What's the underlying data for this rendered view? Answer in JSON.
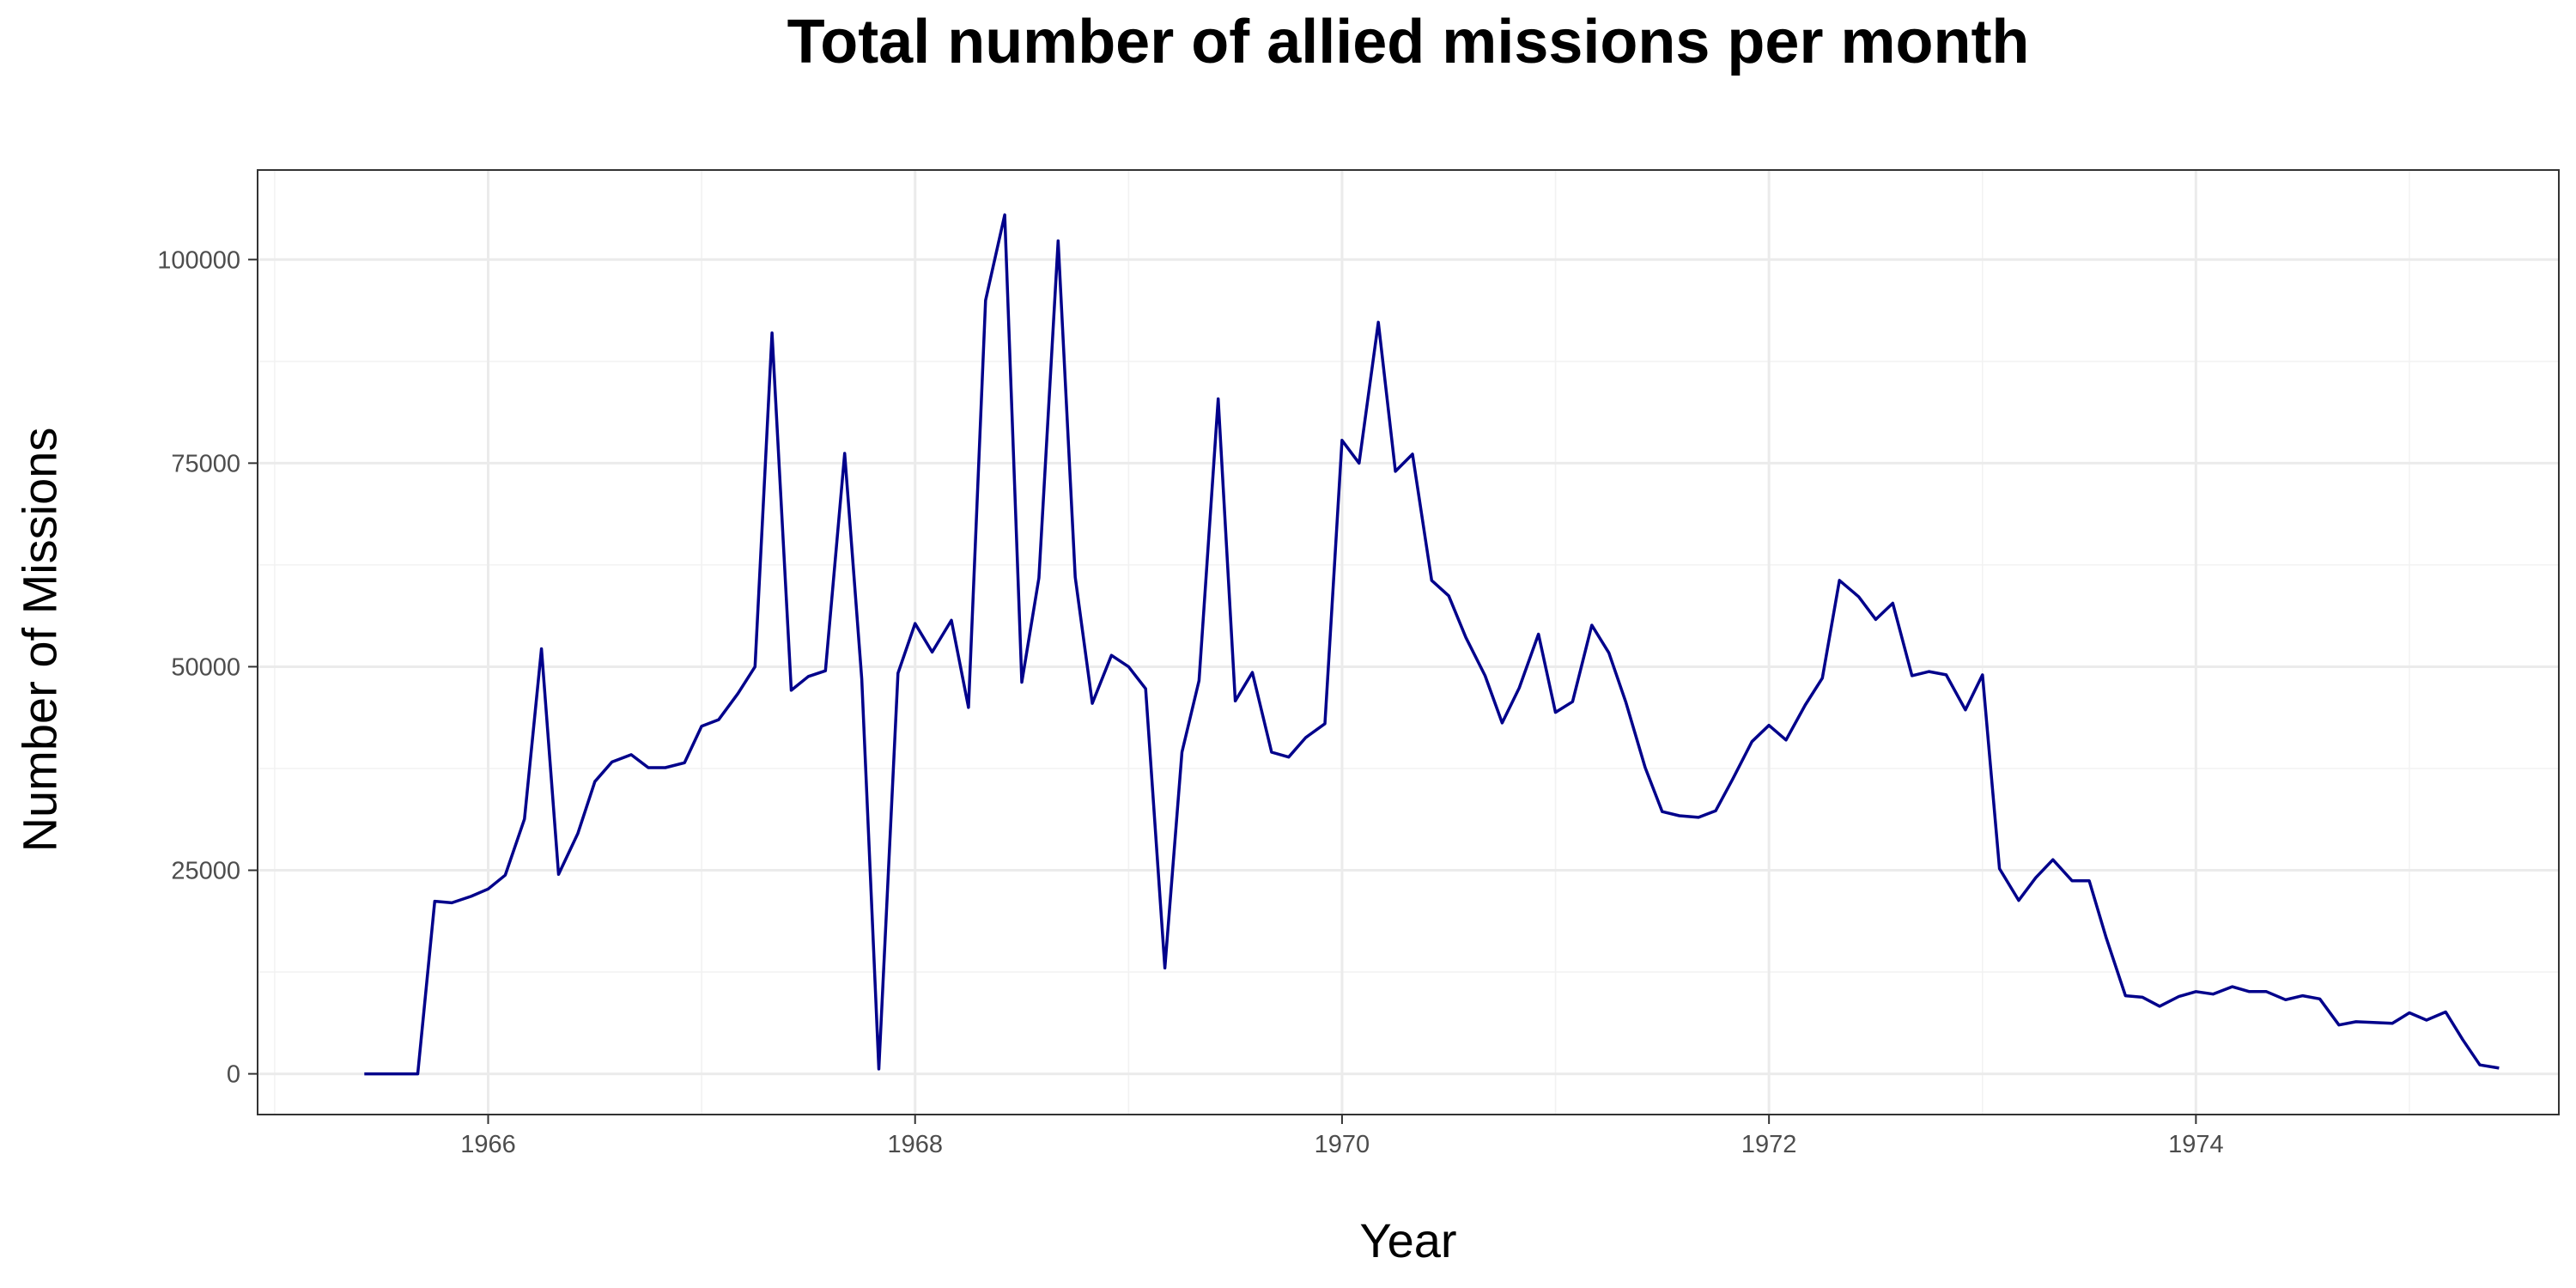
{
  "chart_data": {
    "type": "line",
    "title": "Total number of allied missions per month",
    "xlabel": "Year",
    "ylabel": "Number of Missions",
    "xlim": [
      1964.92,
      1975.7
    ],
    "ylim": [
      -5000,
      111000
    ],
    "x_ticks": [
      1966,
      1968,
      1970,
      1972,
      1974
    ],
    "x_tick_labels": [
      "1966",
      "1968",
      "1970",
      "1972",
      "1974"
    ],
    "y_ticks": [
      0,
      25000,
      50000,
      75000,
      100000
    ],
    "y_tick_labels": [
      "0",
      "25000",
      "50000",
      "75000",
      "100000"
    ],
    "grid": true,
    "line_color": "#00008b",
    "series": [
      {
        "x": [
          1965.42,
          1965.5,
          1965.58,
          1965.67,
          1965.75,
          1965.83,
          1965.92,
          1966.0,
          1966.08,
          1966.17,
          1966.25,
          1966.33,
          1966.42,
          1966.5,
          1966.58,
          1966.67,
          1966.75,
          1966.83,
          1966.92,
          1967.0,
          1967.08,
          1967.17,
          1967.25,
          1967.33,
          1967.42,
          1967.5,
          1967.58,
          1967.67,
          1967.75,
          1967.83,
          1967.92,
          1968.0,
          1968.08,
          1968.17,
          1968.25,
          1968.33,
          1968.42,
          1968.5,
          1968.58,
          1968.67,
          1968.75,
          1968.83,
          1968.92,
          1969.0,
          1969.08,
          1969.17,
          1969.25,
          1969.33,
          1969.42,
          1969.5,
          1969.58,
          1969.67,
          1969.75,
          1969.83,
          1969.92,
          1970.0,
          1970.08,
          1970.17,
          1970.25,
          1970.33,
          1970.42,
          1970.5,
          1970.58,
          1970.67,
          1970.75,
          1970.83,
          1970.92,
          1971.0,
          1971.08,
          1971.17,
          1971.25,
          1971.33,
          1971.42,
          1971.5,
          1971.58,
          1971.67,
          1971.75,
          1971.83,
          1971.92,
          1972.0,
          1972.08,
          1972.17,
          1972.25,
          1972.33,
          1972.42,
          1972.5,
          1972.58,
          1972.67,
          1972.75,
          1972.83,
          1972.92,
          1973.0,
          1973.08,
          1973.17,
          1973.25,
          1973.33,
          1973.42,
          1973.5,
          1973.58,
          1973.67,
          1973.75,
          1973.83,
          1973.92,
          1974.0,
          1974.08,
          1974.17,
          1974.25,
          1974.33,
          1974.42,
          1974.5,
          1974.58,
          1974.67,
          1974.75,
          1974.83,
          1974.92,
          1975.0,
          1975.08,
          1975.17,
          1975.25,
          1975.33,
          1975.42
        ],
        "y": [
          0,
          0,
          0,
          0,
          21200,
          21000,
          21800,
          22700,
          24400,
          31300,
          52200,
          24500,
          29500,
          35900,
          38300,
          39200,
          37600,
          37600,
          38200,
          42700,
          43500,
          46700,
          50000,
          91000,
          47100,
          48800,
          49500,
          76200,
          48500,
          600,
          49200,
          55300,
          51800,
          55700,
          45000,
          95000,
          105500,
          48100,
          60900,
          102300,
          61000,
          45500,
          51400,
          50000,
          47300,
          13000,
          39500,
          48300,
          82900,
          45800,
          49300,
          39500,
          38900,
          41300,
          43000,
          77800,
          75000,
          92300,
          74000,
          76100,
          60600,
          58700,
          53600,
          48900,
          43100,
          47400,
          54000,
          44400,
          45700,
          55100,
          51700,
          45600,
          37600,
          32200,
          31700,
          31500,
          32300,
          36200,
          40800,
          42800,
          41000,
          45300,
          48600,
          60600,
          58600,
          55800,
          57800,
          48900,
          49400,
          49000,
          44700,
          49000,
          25200,
          21300,
          24100,
          26300,
          23700,
          23700,
          16700,
          9600,
          9400,
          8300,
          9500,
          10100,
          9800,
          10700,
          10100,
          10100,
          9100,
          9600,
          9200,
          6000,
          6400,
          6300,
          6200,
          7500,
          6600,
          7600,
          4200,
          1100,
          700
        ]
      }
    ]
  }
}
